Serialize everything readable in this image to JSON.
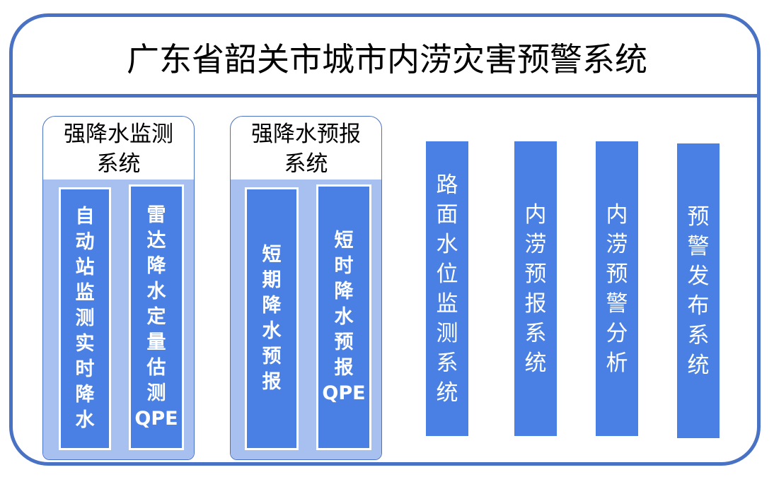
{
  "title": "广东省韶关市城市内涝灾害预警系统",
  "colors": {
    "border": "#4a72c4",
    "box": "#4a80e4",
    "group_fill": "#a8c0f0"
  },
  "groups": [
    {
      "label": "强降水监测\n系统",
      "items": [
        "自\n动\n站\n监\n测\n实\n时\n降\n水",
        "雷\n达\n降\n水\n定\n量\n估\n测\nQPE"
      ]
    },
    {
      "label": "强降水预报\n系统",
      "items": [
        "短\n期\n降\n水\n预\n报",
        "短\n时\n降\n水\n预\n报\nQPE"
      ]
    }
  ],
  "columns": [
    "路\n面\n水\n位\n监\n测\n系\n统",
    "内\n涝\n预\n报\n系\n统",
    "内\n涝\n预\n警\n分\n析",
    "预\n警\n发\n布\n系\n统"
  ]
}
